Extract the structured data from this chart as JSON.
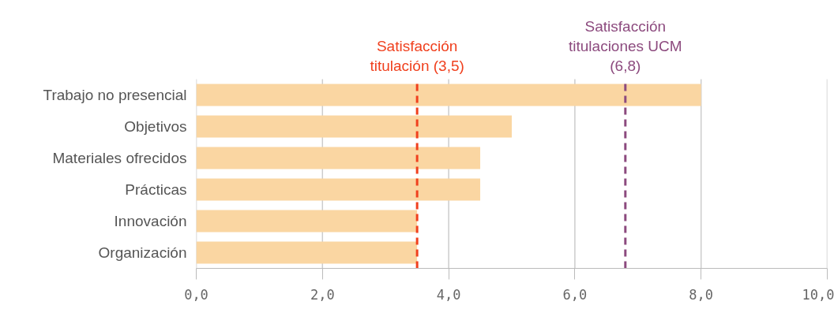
{
  "chart_data": {
    "type": "bar",
    "orientation": "horizontal",
    "categories": [
      "Trabajo no presencial",
      "Objetivos",
      "Materiales ofrecidos",
      "Prácticas",
      "Innovación",
      "Organización"
    ],
    "values": [
      8.0,
      5.0,
      4.5,
      4.5,
      3.5,
      3.5
    ],
    "color": "#fad6a2",
    "xlim": [
      0,
      10
    ],
    "xticks": [
      {
        "value": 0,
        "label": "0,0"
      },
      {
        "value": 2,
        "label": "2,0"
      },
      {
        "value": 4,
        "label": "4,0"
      },
      {
        "value": 6,
        "label": "6,0"
      },
      {
        "value": 8,
        "label": "8,0"
      },
      {
        "value": 10,
        "label": "10,0"
      }
    ],
    "grid": "x",
    "ref_lines": [
      {
        "axis": "x",
        "value": 3.5,
        "label": "Satisfacción\ntitulación (3,5)",
        "color": "#f0401e",
        "line_style": "dashed"
      },
      {
        "axis": "x",
        "value": 6.8,
        "label": "Satisfacción\ntitulaciones UCM\n(6,8)",
        "color": "#8c4a7e",
        "line_style": "dashed"
      }
    ]
  }
}
